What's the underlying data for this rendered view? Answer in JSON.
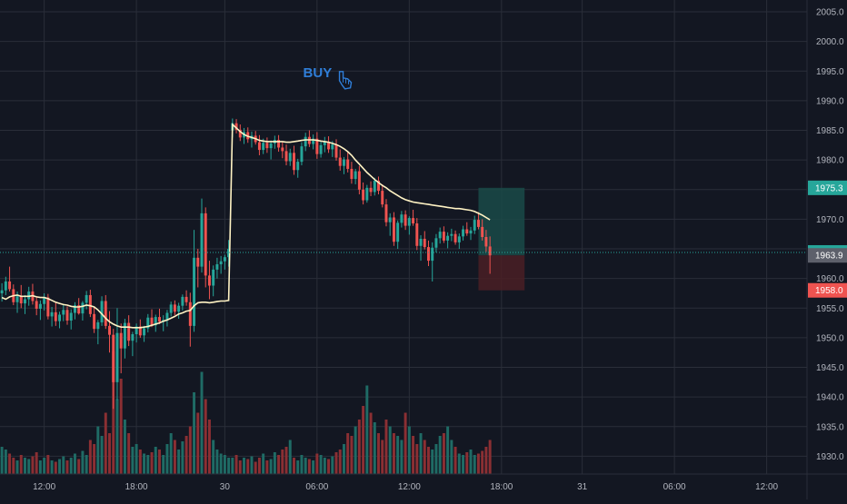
{
  "colors": {
    "background": "#131722",
    "grid": "#2a2e39",
    "up": "#26a69a",
    "down": "#ef5350",
    "vol_up": "#1f6b65",
    "vol_down": "#8b2f33",
    "ma_line": "#fff3c4",
    "axis_text": "#b2b5be",
    "buy_label": "#2f7ed8",
    "price_line": "#26a69a",
    "target_zone": "#1a4a48",
    "stop_zone": "#4a1e25",
    "badge_target": "#26a69a",
    "badge_current": "#26a69a",
    "badge_entry": "#5d606b",
    "badge_stop": "#ef5350"
  },
  "annotation": {
    "text": "BUY",
    "icon": "pointing-hand-icon"
  },
  "chart_data": {
    "type": "candlestick",
    "y_axis": {
      "ticks": [
        1930.0,
        1935.0,
        1940.0,
        1945.0,
        1950.0,
        1955.0,
        1960.0,
        1965.0,
        1970.0,
        1975.0,
        1980.0,
        1985.0,
        1990.0,
        1995.0,
        2000.0,
        2005.0
      ],
      "range": [
        1927.0,
        2007.0
      ]
    },
    "x_axis": {
      "tick_labels": [
        {
          "label": "12:00",
          "bar": 11
        },
        {
          "label": "18:00",
          "bar": 35
        },
        {
          "label": "30",
          "bar": 58
        },
        {
          "label": "06:00",
          "bar": 82
        },
        {
          "label": "12:00",
          "bar": 106
        },
        {
          "label": "18:00",
          "bar": 130
        },
        {
          "label": "31",
          "bar": 151
        },
        {
          "label": "06:00",
          "bar": 175
        },
        {
          "label": "12:00",
          "bar": 199
        }
      ],
      "total_bars": 210
    },
    "ohlc": [
      [
        1957.5,
        1959.2,
        1956.1,
        1958.0
      ],
      [
        1958.0,
        1960.3,
        1957.2,
        1959.5
      ],
      [
        1959.5,
        1962.0,
        1957.8,
        1958.2
      ],
      [
        1958.2,
        1959.0,
        1955.5,
        1956.0
      ],
      [
        1956.0,
        1957.8,
        1954.2,
        1957.0
      ],
      [
        1957.0,
        1958.9,
        1955.0,
        1955.8
      ],
      [
        1955.8,
        1957.2,
        1954.0,
        1956.5
      ],
      [
        1956.5,
        1958.6,
        1955.4,
        1957.8
      ],
      [
        1957.8,
        1959.1,
        1955.6,
        1956.2
      ],
      [
        1956.2,
        1957.0,
        1953.8,
        1954.9
      ],
      [
        1954.9,
        1956.3,
        1953.0,
        1955.7
      ],
      [
        1955.7,
        1957.5,
        1954.6,
        1956.8
      ],
      [
        1956.8,
        1957.4,
        1953.1,
        1953.6
      ],
      [
        1953.6,
        1955.2,
        1951.9,
        1954.3
      ],
      [
        1954.3,
        1955.9,
        1952.0,
        1952.8
      ],
      [
        1952.8,
        1954.4,
        1951.6,
        1953.9
      ],
      [
        1953.9,
        1955.6,
        1952.8,
        1954.7
      ],
      [
        1954.7,
        1955.3,
        1952.2,
        1952.9
      ],
      [
        1952.9,
        1954.8,
        1951.4,
        1954.2
      ],
      [
        1954.2,
        1956.0,
        1953.1,
        1955.5
      ],
      [
        1955.5,
        1956.7,
        1953.9,
        1954.1
      ],
      [
        1954.1,
        1956.2,
        1952.9,
        1955.9
      ],
      [
        1955.9,
        1957.9,
        1954.8,
        1957.2
      ],
      [
        1957.2,
        1958.1,
        1953.5,
        1954.0
      ],
      [
        1954.0,
        1955.2,
        1950.8,
        1951.5
      ],
      [
        1951.5,
        1953.0,
        1948.9,
        1952.6
      ],
      [
        1952.6,
        1957.0,
        1952.0,
        1956.2
      ],
      [
        1956.2,
        1957.2,
        1951.5,
        1952.0
      ],
      [
        1952.0,
        1954.5,
        1947.5,
        1950.5
      ],
      [
        1950.5,
        1951.5,
        1938.0,
        1942.5
      ],
      [
        1942.5,
        1955.0,
        1939.5,
        1950.8
      ],
      [
        1950.8,
        1952.4,
        1944.0,
        1948.2
      ],
      [
        1948.2,
        1953.2,
        1946.5,
        1952.5
      ],
      [
        1952.5,
        1953.8,
        1948.6,
        1949.5
      ],
      [
        1949.5,
        1951.0,
        1946.9,
        1950.6
      ],
      [
        1950.6,
        1952.4,
        1949.2,
        1951.9
      ],
      [
        1951.9,
        1953.1,
        1950.0,
        1950.4
      ],
      [
        1950.4,
        1952.0,
        1949.3,
        1951.6
      ],
      [
        1951.6,
        1954.0,
        1950.9,
        1953.4
      ],
      [
        1953.4,
        1954.8,
        1951.8,
        1952.1
      ],
      [
        1952.1,
        1953.9,
        1951.0,
        1953.5
      ],
      [
        1953.5,
        1954.9,
        1952.3,
        1952.7
      ],
      [
        1952.7,
        1953.8,
        1951.1,
        1953.0
      ],
      [
        1953.0,
        1954.7,
        1951.9,
        1954.2
      ],
      [
        1954.2,
        1956.1,
        1953.6,
        1955.6
      ],
      [
        1955.6,
        1956.3,
        1953.8,
        1954.4
      ],
      [
        1954.4,
        1955.9,
        1953.2,
        1955.4
      ],
      [
        1955.4,
        1957.3,
        1954.6,
        1956.9
      ],
      [
        1956.9,
        1958.0,
        1955.4,
        1956.0
      ],
      [
        1956.0,
        1957.6,
        1948.5,
        1952.0
      ],
      [
        1952.0,
        1968.2,
        1951.0,
        1963.5
      ],
      [
        1963.5,
        1965.0,
        1958.5,
        1962.0
      ],
      [
        1962.0,
        1973.5,
        1961.0,
        1971.0
      ],
      [
        1971.0,
        1972.0,
        1958.5,
        1960.5
      ],
      [
        1960.5,
        1963.0,
        1956.5,
        1958.8
      ],
      [
        1958.8,
        1962.2,
        1957.0,
        1961.5
      ],
      [
        1961.5,
        1963.5,
        1960.0,
        1962.4
      ],
      [
        1962.4,
        1963.8,
        1960.8,
        1962.9
      ],
      [
        1962.9,
        1964.0,
        1961.5,
        1963.6
      ],
      [
        1963.6,
        1966.5,
        1962.0,
        1965.0
      ],
      [
        1985.0,
        1987.0,
        1983.8,
        1986.2
      ],
      [
        1986.2,
        1986.9,
        1984.5,
        1985.1
      ],
      [
        1985.1,
        1986.0,
        1983.2,
        1983.8
      ],
      [
        1983.8,
        1985.4,
        1982.7,
        1984.7
      ],
      [
        1984.7,
        1985.5,
        1982.9,
        1983.5
      ],
      [
        1983.5,
        1984.8,
        1982.1,
        1984.1
      ],
      [
        1984.1,
        1984.9,
        1982.6,
        1983.0
      ],
      [
        1983.0,
        1984.2,
        1980.8,
        1981.7
      ],
      [
        1981.7,
        1983.6,
        1981.0,
        1982.9
      ],
      [
        1982.9,
        1983.8,
        1981.2,
        1982.0
      ],
      [
        1982.0,
        1983.3,
        1980.1,
        1982.8
      ],
      [
        1982.8,
        1984.1,
        1981.9,
        1983.4
      ],
      [
        1983.4,
        1984.2,
        1981.4,
        1982.1
      ],
      [
        1982.1,
        1983.0,
        1980.3,
        1981.5
      ],
      [
        1981.5,
        1982.6,
        1979.1,
        1979.8
      ],
      [
        1979.8,
        1981.9,
        1979.0,
        1981.2
      ],
      [
        1981.2,
        1982.4,
        1977.5,
        1978.3
      ],
      [
        1978.3,
        1980.2,
        1977.0,
        1979.7
      ],
      [
        1979.7,
        1983.0,
        1979.1,
        1982.3
      ],
      [
        1982.3,
        1984.6,
        1981.5,
        1983.9
      ],
      [
        1983.9,
        1985.0,
        1982.2,
        1982.7
      ],
      [
        1982.7,
        1984.3,
        1981.8,
        1983.6
      ],
      [
        1983.6,
        1984.7,
        1980.2,
        1981.0
      ],
      [
        1981.0,
        1983.1,
        1980.4,
        1982.5
      ],
      [
        1982.5,
        1983.9,
        1981.3,
        1983.1
      ],
      [
        1983.1,
        1984.0,
        1981.2,
        1981.8
      ],
      [
        1981.8,
        1983.2,
        1980.5,
        1982.6
      ],
      [
        1982.6,
        1983.5,
        1979.9,
        1980.4
      ],
      [
        1980.4,
        1981.8,
        1978.2,
        1979.0
      ],
      [
        1979.0,
        1980.5,
        1977.6,
        1980.1
      ],
      [
        1980.1,
        1981.3,
        1977.9,
        1978.5
      ],
      [
        1978.5,
        1979.7,
        1976.0,
        1976.8
      ],
      [
        1976.8,
        1978.5,
        1975.9,
        1978.1
      ],
      [
        1978.1,
        1979.0,
        1974.2,
        1975.0
      ],
      [
        1975.0,
        1976.2,
        1972.5,
        1973.2
      ],
      [
        1973.2,
        1975.8,
        1972.8,
        1975.3
      ],
      [
        1975.3,
        1976.4,
        1973.9,
        1974.6
      ],
      [
        1974.6,
        1977.0,
        1974.0,
        1976.5
      ],
      [
        1976.5,
        1977.2,
        1974.2,
        1974.8
      ],
      [
        1974.8,
        1975.9,
        1972.0,
        1972.5
      ],
      [
        1972.5,
        1973.4,
        1968.8,
        1969.5
      ],
      [
        1969.5,
        1971.0,
        1967.2,
        1970.3
      ],
      [
        1970.3,
        1971.2,
        1965.5,
        1966.2
      ],
      [
        1966.2,
        1969.8,
        1965.0,
        1969.4
      ],
      [
        1969.4,
        1971.4,
        1968.6,
        1970.8
      ],
      [
        1970.8,
        1971.5,
        1968.2,
        1968.9
      ],
      [
        1968.9,
        1970.5,
        1967.4,
        1970.2
      ],
      [
        1970.2,
        1971.6,
        1968.9,
        1969.3
      ],
      [
        1969.3,
        1970.2,
        1964.8,
        1965.5
      ],
      [
        1965.5,
        1967.3,
        1963.0,
        1966.7
      ],
      [
        1966.7,
        1968.0,
        1964.9,
        1965.3
      ],
      [
        1965.3,
        1966.4,
        1962.1,
        1963.0
      ],
      [
        1963.0,
        1966.1,
        1959.5,
        1965.2
      ],
      [
        1965.2,
        1967.5,
        1964.4,
        1966.8
      ],
      [
        1966.8,
        1968.6,
        1965.9,
        1967.9
      ],
      [
        1967.9,
        1968.8,
        1966.0,
        1966.4
      ],
      [
        1966.4,
        1967.8,
        1965.1,
        1967.2
      ],
      [
        1967.2,
        1968.4,
        1966.3,
        1967.5
      ],
      [
        1967.5,
        1968.1,
        1965.7,
        1966.1
      ],
      [
        1966.1,
        1967.6,
        1965.0,
        1967.1
      ],
      [
        1967.1,
        1968.9,
        1966.4,
        1968.3
      ],
      [
        1968.3,
        1969.5,
        1967.2,
        1967.6
      ],
      [
        1967.6,
        1968.7,
        1966.5,
        1968.1
      ],
      [
        1968.1,
        1970.6,
        1967.5,
        1969.9
      ],
      [
        1969.9,
        1971.2,
        1968.3,
        1968.7
      ],
      [
        1968.7,
        1970.0,
        1966.4,
        1967.0
      ],
      [
        1967.0,
        1968.2,
        1964.5,
        1965.4
      ],
      [
        1965.4,
        1967.1,
        1960.8,
        1963.9
      ]
    ],
    "volume": [
      20,
      18,
      15,
      12,
      10,
      14,
      12,
      11,
      13,
      16,
      10,
      12,
      14,
      10,
      9,
      11,
      13,
      10,
      12,
      15,
      11,
      17,
      14,
      25,
      22,
      35,
      28,
      45,
      30,
      90,
      55,
      70,
      40,
      30,
      20,
      22,
      18,
      15,
      14,
      16,
      20,
      18,
      14,
      22,
      30,
      25,
      18,
      24,
      28,
      35,
      60,
      45,
      75,
      55,
      40,
      25,
      18,
      15,
      14,
      12,
      12,
      14,
      10,
      12,
      11,
      13,
      9,
      12,
      15,
      10,
      11,
      16,
      14,
      18,
      20,
      25,
      12,
      10,
      14,
      12,
      11,
      10,
      15,
      14,
      12,
      11,
      13,
      16,
      18,
      22,
      30,
      28,
      35,
      40,
      50,
      65,
      45,
      38,
      30,
      25,
      40,
      35,
      30,
      28,
      25,
      45,
      35,
      28,
      22,
      30,
      25,
      20,
      18,
      22,
      28,
      30,
      35,
      25,
      20,
      15,
      14,
      16,
      18,
      14,
      15,
      17,
      20,
      25,
      40,
      50
    ],
    "moving_average": [
      1956.8,
      1956.5,
      1956.9,
      1957.1,
      1957.2,
      1957.0,
      1957.0,
      1957.0,
      1957.1,
      1956.9,
      1956.8,
      1956.8,
      1956.6,
      1956.3,
      1956.0,
      1955.8,
      1955.6,
      1955.5,
      1955.3,
      1955.2,
      1955.2,
      1955.3,
      1955.5,
      1955.4,
      1955.2,
      1954.7,
      1954.0,
      1953.3,
      1952.7,
      1952.3,
      1952.0,
      1951.8,
      1951.8,
      1951.8,
      1951.7,
      1951.7,
      1951.7,
      1951.8,
      1951.9,
      1952.1,
      1952.3,
      1952.5,
      1952.8,
      1953.0,
      1953.3,
      1953.6,
      1954.0,
      1954.2,
      1954.5,
      1954.6,
      1955.4,
      1955.9,
      1956.0,
      1956.0,
      1955.9,
      1956.0,
      1956.1,
      1956.2,
      1956.2,
      1956.3,
      1986.0,
      1985.4,
      1984.8,
      1984.3,
      1984.0,
      1983.8,
      1983.6,
      1983.3,
      1983.2,
      1983.1,
      1983.1,
      1983.1,
      1983.1,
      1983.1,
      1983.0,
      1983.0,
      1983.1,
      1983.2,
      1983.3,
      1983.4,
      1983.4,
      1983.4,
      1983.3,
      1983.2,
      1983.1,
      1983.0,
      1982.8,
      1982.6,
      1982.3,
      1981.9,
      1981.4,
      1980.8,
      1980.0,
      1979.3,
      1978.6,
      1977.9,
      1977.3,
      1976.7,
      1976.2,
      1975.7,
      1975.3,
      1974.8,
      1974.4,
      1974.0,
      1973.6,
      1973.3,
      1973.1,
      1972.9,
      1972.8,
      1972.7,
      1972.6,
      1972.5,
      1972.4,
      1972.3,
      1972.2,
      1972.1,
      1972.0,
      1971.9,
      1971.8,
      1971.8,
      1971.7,
      1971.6,
      1971.5,
      1971.3,
      1971.0,
      1970.7,
      1970.3,
      1969.9
    ],
    "annotation_bar": 85,
    "annotation_price": 1994.0,
    "position": {
      "target": 1975.3,
      "entry": 1963.9,
      "stop": 1958.0,
      "current": 1964.4,
      "start_bar": 124,
      "end_bar": 136
    },
    "price_labels": {
      "target": "1975.3",
      "current": "1964.4",
      "entry": "1963.9",
      "stop": "1958.0"
    }
  }
}
